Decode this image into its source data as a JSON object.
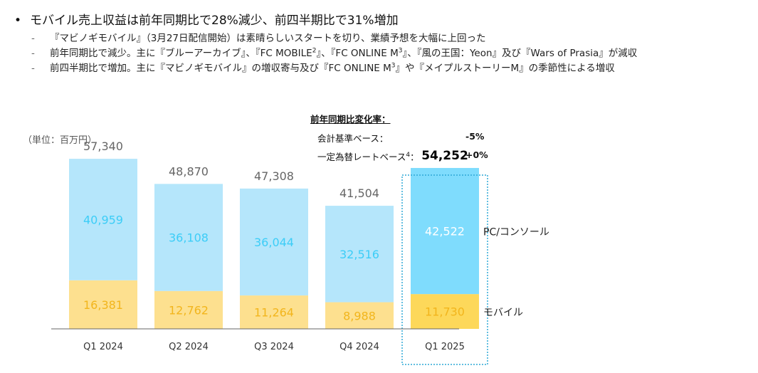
{
  "header": {
    "bullet": "•",
    "title": "モバイル売上収益は前年同期比で28%減少、前四半期比で31%増加",
    "subs": [
      {
        "dash": "-",
        "text": "『マビノギモバイル』（3月27日配信開始）は素晴らしいスタートを切り、業績予想を大幅に上回った"
      },
      {
        "dash": "-",
        "text": "前年同期比で減少。主に『ブルーアーカイブ』、『FC MOBILE",
        "sup": "2",
        "text2": "』、『FC ONLINE M",
        "sup2": "3",
        "text3": "』、『風の王国：Yeon』及び『Wars of Prasia』が減収"
      },
      {
        "dash": "-",
        "text": "前四半期比で増加。主に『マビノギモバイル』の増収寄与及び『FC ONLINE M",
        "sup": "3",
        "text2": "』や『メイプルストーリーM』の季節性による増収"
      }
    ]
  },
  "yoy": {
    "title": "前年同期比変化率：",
    "rows": [
      {
        "label": "会計基準ベース：",
        "sup": "",
        "value": "-5%"
      },
      {
        "label": "一定為替レートベース",
        "sup": "4",
        "colon": "：",
        "value": "+0%"
      }
    ]
  },
  "unit_label": "（単位：百万円）",
  "chart_data": {
    "type": "bar",
    "stacked": true,
    "categories": [
      "Q1 2024",
      "Q2 2024",
      "Q3 2024",
      "Q4 2024",
      "Q1 2025"
    ],
    "series": [
      {
        "name": "モバイル",
        "values": [
          16381,
          12762,
          11264,
          8988,
          11730
        ],
        "labels": [
          "16,381",
          "12,762",
          "11,264",
          "8,988",
          "11,730"
        ]
      },
      {
        "name": "PC/コンソール",
        "values": [
          40959,
          36108,
          36044,
          32516,
          42522
        ],
        "labels": [
          "40,959",
          "36,108",
          "36,044",
          "32,516",
          "42,522"
        ]
      }
    ],
    "totals": [
      57340,
      48870,
      47308,
      41504,
      54252
    ],
    "total_labels": [
      "57,340",
      "48,870",
      "47,308",
      "41,504",
      "54,252"
    ],
    "highlight_index": 4,
    "ylim": [
      0,
      60000
    ],
    "colors": {
      "mobile": "#fde08f",
      "mobile_highlight": "#fdd85a",
      "pc": "#b5e6fb",
      "pc_highlight": "#7fdcfd",
      "pc_label": "#3ccdf7",
      "mobile_label": "#f2b51c",
      "total_label": "#666666",
      "highlight_total_label": "#000000",
      "box": "#2fa8d6"
    }
  }
}
